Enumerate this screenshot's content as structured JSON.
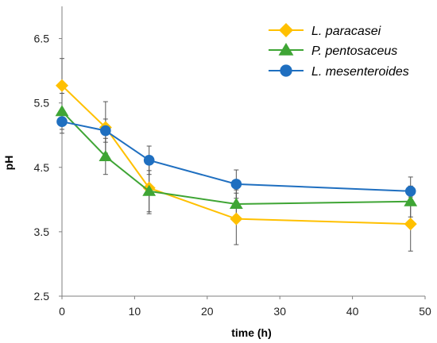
{
  "chart_data": {
    "type": "line",
    "title": "",
    "xlabel": "time (h)",
    "ylabel": "pH",
    "xlim": [
      0,
      50
    ],
    "ylim": [
      2.5,
      7.0
    ],
    "x_ticks": [
      "0",
      "10",
      "20",
      "30",
      "40",
      "50"
    ],
    "y_ticks": [
      "2.5",
      "3.5",
      "4.5",
      "5.5",
      "6.5"
    ],
    "grid": false,
    "legend_position": "top-right",
    "x": [
      0,
      6,
      12,
      24,
      48
    ],
    "series": [
      {
        "name": "L. paracasei",
        "color": "#FFC000",
        "marker": "diamond",
        "values": [
          5.77,
          5.12,
          4.18,
          3.7,
          3.62
        ],
        "errors": [
          0.42,
          0.4,
          0.4,
          0.4,
          0.42
        ]
      },
      {
        "name": "P. pentosaceus",
        "color": "#3FA535",
        "marker": "triangle",
        "values": [
          5.37,
          4.67,
          4.13,
          3.93,
          3.97
        ],
        "errors": [
          0.28,
          0.28,
          0.32,
          0.22,
          0.24
        ]
      },
      {
        "name": "L. mesenteroides",
        "color": "#1F6FC0",
        "marker": "circle",
        "values": [
          5.21,
          5.07,
          4.61,
          4.24,
          4.13
        ],
        "errors": [
          0.18,
          0.18,
          0.22,
          0.22,
          0.22
        ]
      }
    ]
  }
}
